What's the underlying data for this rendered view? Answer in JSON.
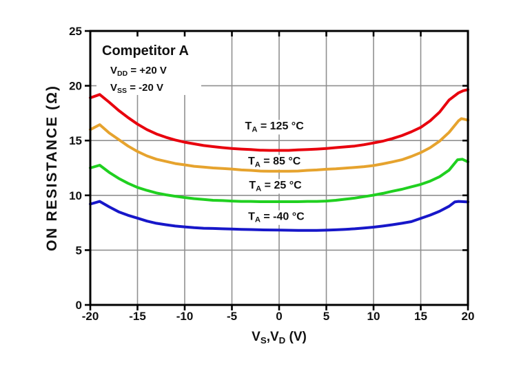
{
  "chart_data": {
    "type": "line",
    "title": "Competitor A",
    "conditions": [
      {
        "text": "VDD = +20 V",
        "parts": [
          {
            "t": "V"
          },
          {
            "t": "DD",
            "sub": true
          },
          {
            "t": " = +20 V"
          }
        ]
      },
      {
        "text": "VSS = -20 V",
        "parts": [
          {
            "t": "V"
          },
          {
            "t": "SS",
            "sub": true
          },
          {
            "t": " = -20 V"
          }
        ]
      }
    ],
    "xlabel_text": "VS,VD (V)",
    "xlabel_parts": [
      {
        "t": "V"
      },
      {
        "t": "S",
        "sub": true
      },
      {
        "t": ",V"
      },
      {
        "t": "D",
        "sub": true
      },
      {
        "t": " (V)"
      }
    ],
    "ylabel": "ON RESISTANCE (Ω)",
    "xlim": [
      -20,
      20
    ],
    "ylim": [
      0,
      25
    ],
    "xticks": [
      -20,
      -15,
      -10,
      -5,
      0,
      5,
      10,
      15,
      20
    ],
    "yticks": [
      0,
      5,
      10,
      15,
      20,
      25
    ],
    "grid": true,
    "legend_position": "inline-labels",
    "colors": {
      "grid": "#8f8f8f",
      "frame": "#000000",
      "text": "#111111",
      "background": "#ffffff"
    },
    "series": [
      {
        "name": "TA = 125 °C",
        "temperature_c": 125,
        "color": "#e8000d",
        "label_parts": [
          {
            "t": "T"
          },
          {
            "t": "A",
            "sub": true
          },
          {
            "t": " = 125 °C"
          }
        ],
        "label_xy": [
          -0.5,
          16.35
        ],
        "points": [
          [
            -20,
            18.9
          ],
          [
            -19,
            19.2
          ],
          [
            -18,
            18.5
          ],
          [
            -17,
            17.75
          ],
          [
            -16,
            17.1
          ],
          [
            -15,
            16.5
          ],
          [
            -14,
            16.0
          ],
          [
            -13,
            15.6
          ],
          [
            -12,
            15.3
          ],
          [
            -11,
            15.05
          ],
          [
            -10,
            14.85
          ],
          [
            -9,
            14.7
          ],
          [
            -8,
            14.55
          ],
          [
            -7,
            14.45
          ],
          [
            -6,
            14.35
          ],
          [
            -5,
            14.28
          ],
          [
            -4,
            14.22
          ],
          [
            -3,
            14.18
          ],
          [
            -2,
            14.12
          ],
          [
            -1,
            14.1
          ],
          [
            0,
            14.1
          ],
          [
            1,
            14.1
          ],
          [
            2,
            14.15
          ],
          [
            3,
            14.18
          ],
          [
            4,
            14.22
          ],
          [
            5,
            14.28
          ],
          [
            6,
            14.35
          ],
          [
            7,
            14.42
          ],
          [
            8,
            14.5
          ],
          [
            9,
            14.62
          ],
          [
            10,
            14.78
          ],
          [
            11,
            14.95
          ],
          [
            12,
            15.18
          ],
          [
            13,
            15.45
          ],
          [
            14,
            15.8
          ],
          [
            15,
            16.2
          ],
          [
            16,
            16.8
          ],
          [
            17,
            17.6
          ],
          [
            18,
            18.7
          ],
          [
            19,
            19.35
          ],
          [
            19.5,
            19.55
          ],
          [
            20,
            19.65
          ]
        ]
      },
      {
        "name": "TA = 85 °C",
        "temperature_c": 85,
        "color": "#e6a32e",
        "label_parts": [
          {
            "t": "T"
          },
          {
            "t": "A",
            "sub": true
          },
          {
            "t": " = 85 °C"
          }
        ],
        "label_xy": [
          -0.5,
          13.15
        ],
        "points": [
          [
            -20,
            16.0
          ],
          [
            -19,
            16.45
          ],
          [
            -18,
            15.7
          ],
          [
            -17,
            15.1
          ],
          [
            -16,
            14.5
          ],
          [
            -15,
            14.0
          ],
          [
            -14,
            13.6
          ],
          [
            -13,
            13.3
          ],
          [
            -12,
            13.1
          ],
          [
            -11,
            12.9
          ],
          [
            -10,
            12.78
          ],
          [
            -9,
            12.65
          ],
          [
            -8,
            12.58
          ],
          [
            -7,
            12.5
          ],
          [
            -6,
            12.45
          ],
          [
            -5,
            12.4
          ],
          [
            -4,
            12.32
          ],
          [
            -3,
            12.28
          ],
          [
            -2,
            12.22
          ],
          [
            -1,
            12.2
          ],
          [
            0,
            12.2
          ],
          [
            1,
            12.2
          ],
          [
            2,
            12.22
          ],
          [
            3,
            12.28
          ],
          [
            4,
            12.32
          ],
          [
            5,
            12.38
          ],
          [
            6,
            12.42
          ],
          [
            7,
            12.48
          ],
          [
            8,
            12.55
          ],
          [
            9,
            12.62
          ],
          [
            10,
            12.72
          ],
          [
            11,
            12.88
          ],
          [
            12,
            13.05
          ],
          [
            13,
            13.25
          ],
          [
            14,
            13.55
          ],
          [
            15,
            13.9
          ],
          [
            16,
            14.35
          ],
          [
            17,
            14.95
          ],
          [
            18,
            15.75
          ],
          [
            19,
            16.8
          ],
          [
            19.3,
            17.0
          ],
          [
            19.6,
            16.95
          ],
          [
            20,
            16.85
          ]
        ]
      },
      {
        "name": "TA = 25 °C",
        "temperature_c": 25,
        "color": "#20d020",
        "label_parts": [
          {
            "t": "T"
          },
          {
            "t": "A",
            "sub": true
          },
          {
            "t": " = 25 °C"
          }
        ],
        "label_xy": [
          -0.4,
          10.95
        ],
        "points": [
          [
            -20,
            12.5
          ],
          [
            -19,
            12.75
          ],
          [
            -18,
            12.1
          ],
          [
            -17,
            11.55
          ],
          [
            -16,
            11.1
          ],
          [
            -15,
            10.72
          ],
          [
            -14,
            10.45
          ],
          [
            -13,
            10.22
          ],
          [
            -12,
            10.05
          ],
          [
            -11,
            9.92
          ],
          [
            -10,
            9.8
          ],
          [
            -9,
            9.7
          ],
          [
            -8,
            9.62
          ],
          [
            -7,
            9.55
          ],
          [
            -6,
            9.52
          ],
          [
            -5,
            9.48
          ],
          [
            -4,
            9.45
          ],
          [
            -3,
            9.45
          ],
          [
            -2,
            9.42
          ],
          [
            0,
            9.42
          ],
          [
            2,
            9.42
          ],
          [
            3,
            9.45
          ],
          [
            4,
            9.45
          ],
          [
            5,
            9.48
          ],
          [
            6,
            9.55
          ],
          [
            7,
            9.65
          ],
          [
            8,
            9.75
          ],
          [
            9,
            9.88
          ],
          [
            10,
            10.02
          ],
          [
            11,
            10.18
          ],
          [
            12,
            10.38
          ],
          [
            13,
            10.55
          ],
          [
            14,
            10.78
          ],
          [
            15,
            11.0
          ],
          [
            16,
            11.3
          ],
          [
            17,
            11.7
          ],
          [
            18,
            12.3
          ],
          [
            18.9,
            13.25
          ],
          [
            19.4,
            13.3
          ],
          [
            20,
            13.05
          ]
        ]
      },
      {
        "name": "TA = -40 °C",
        "temperature_c": -40,
        "color": "#1717c9",
        "label_parts": [
          {
            "t": "T"
          },
          {
            "t": "A",
            "sub": true
          },
          {
            "t": " = -40 °C"
          }
        ],
        "label_xy": [
          -0.3,
          8.1
        ],
        "points": [
          [
            -20,
            9.2
          ],
          [
            -19,
            9.45
          ],
          [
            -18,
            8.95
          ],
          [
            -17,
            8.5
          ],
          [
            -16,
            8.18
          ],
          [
            -15,
            7.92
          ],
          [
            -14,
            7.65
          ],
          [
            -13,
            7.45
          ],
          [
            -12,
            7.32
          ],
          [
            -11,
            7.2
          ],
          [
            -10,
            7.12
          ],
          [
            -9,
            7.05
          ],
          [
            -8,
            7.0
          ],
          [
            -7,
            6.98
          ],
          [
            -6,
            6.95
          ],
          [
            -5,
            6.92
          ],
          [
            -4,
            6.9
          ],
          [
            -3,
            6.88
          ],
          [
            -2,
            6.85
          ],
          [
            0,
            6.83
          ],
          [
            2,
            6.8
          ],
          [
            4,
            6.8
          ],
          [
            5,
            6.82
          ],
          [
            6,
            6.85
          ],
          [
            7,
            6.9
          ],
          [
            8,
            6.95
          ],
          [
            9,
            7.02
          ],
          [
            10,
            7.1
          ],
          [
            11,
            7.2
          ],
          [
            12,
            7.32
          ],
          [
            13,
            7.45
          ],
          [
            14,
            7.6
          ],
          [
            15,
            7.9
          ],
          [
            16,
            8.2
          ],
          [
            17,
            8.55
          ],
          [
            18,
            9.0
          ],
          [
            18.6,
            9.4
          ],
          [
            19,
            9.45
          ],
          [
            19.5,
            9.42
          ],
          [
            20,
            9.4
          ]
        ]
      }
    ]
  }
}
